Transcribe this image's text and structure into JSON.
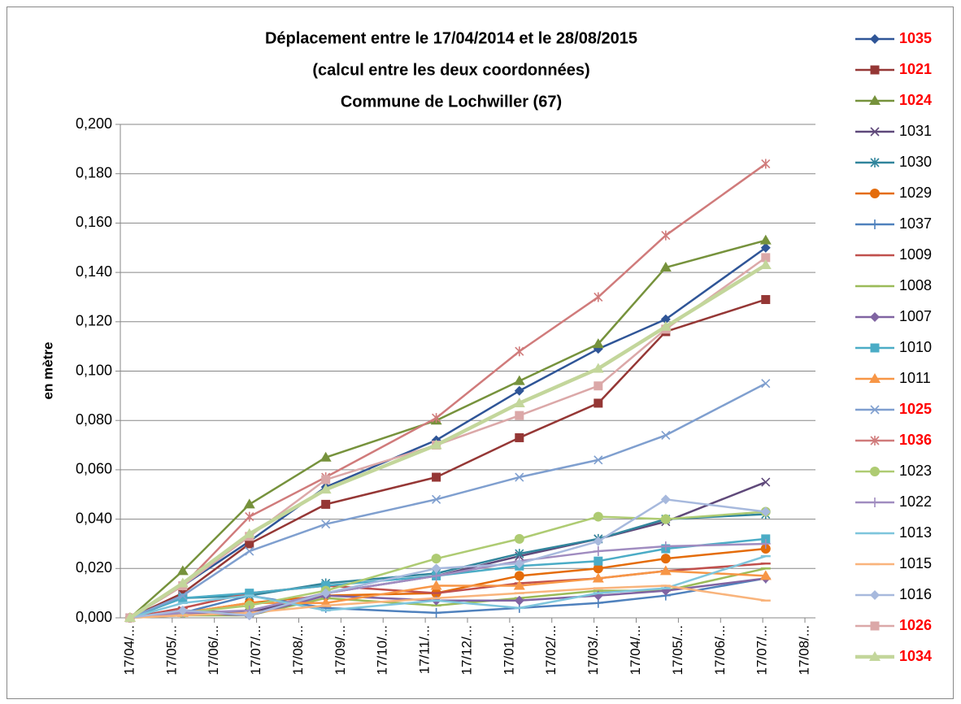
{
  "chart_data": {
    "type": "line",
    "title_lines": [
      "Déplacement entre le 17/04/2014 et le 28/08/2015",
      "(calcul entre les deux coordonnées)",
      "Commune de Lochwiller (67)"
    ],
    "y_label": "en mètre",
    "x": [
      0,
      1.25,
      2.83,
      4.64,
      7.26,
      9.23,
      11.1,
      12.7,
      15.07
    ],
    "xlim": [
      -0.23,
      16.25
    ],
    "xticks": [
      {
        "value": 0,
        "label": "17/04/..."
      },
      {
        "value": 1,
        "label": "17/05/..."
      },
      {
        "value": 2,
        "label": "17/06/..."
      },
      {
        "value": 3,
        "label": "17/07/..."
      },
      {
        "value": 4,
        "label": "17/08/..."
      },
      {
        "value": 5,
        "label": "17/09/..."
      },
      {
        "value": 6,
        "label": "17/10/..."
      },
      {
        "value": 7,
        "label": "17/11/..."
      },
      {
        "value": 8,
        "label": "17/12/..."
      },
      {
        "value": 9,
        "label": "17/01/..."
      },
      {
        "value": 10,
        "label": "17/02/..."
      },
      {
        "value": 11,
        "label": "17/03/..."
      },
      {
        "value": 12,
        "label": "17/04/..."
      },
      {
        "value": 13,
        "label": "17/05/..."
      },
      {
        "value": 14,
        "label": "17/06/..."
      },
      {
        "value": 15,
        "label": "17/07/..."
      },
      {
        "value": 16,
        "label": "17/08/..."
      }
    ],
    "ylim": [
      0,
      0.2
    ],
    "yticks": [
      {
        "value": 0,
        "label": "0,000"
      },
      {
        "value": 0.02,
        "label": "0,020"
      },
      {
        "value": 0.04,
        "label": "0,040"
      },
      {
        "value": 0.06,
        "label": "0,060"
      },
      {
        "value": 0.08,
        "label": "0,080"
      },
      {
        "value": 0.1,
        "label": "0,100"
      },
      {
        "value": 0.12,
        "label": "0,120"
      },
      {
        "value": 0.14,
        "label": "0,140"
      },
      {
        "value": 0.16,
        "label": "0,160"
      },
      {
        "value": 0.18,
        "label": "0,180"
      },
      {
        "value": 0.2,
        "label": "0,200"
      }
    ],
    "grid": true,
    "legend": "right",
    "series": [
      {
        "name": "1035",
        "color": "#2f5597",
        "marker": "diamond",
        "label_color": "#ff0000",
        "values": [
          0,
          0.013,
          0.031,
          0.053,
          0.072,
          0.092,
          0.109,
          0.121,
          0.15
        ]
      },
      {
        "name": "1021",
        "color": "#953735",
        "marker": "square",
        "label_color": "#ff0000",
        "values": [
          0,
          0.01,
          0.03,
          0.046,
          0.057,
          0.073,
          0.087,
          0.116,
          0.129
        ]
      },
      {
        "name": "1024",
        "color": "#76923c",
        "marker": "triangle",
        "label_color": "#ff0000",
        "values": [
          0,
          0.019,
          0.046,
          0.065,
          0.08,
          0.096,
          0.111,
          0.142,
          0.153
        ]
      },
      {
        "name": "1031",
        "color": "#5f497a",
        "marker": "x",
        "values": [
          0,
          0.003,
          0.002,
          0.01,
          0.017,
          0.025,
          0.032,
          0.039,
          0.055
        ]
      },
      {
        "name": "1030",
        "color": "#31859c",
        "marker": "star",
        "values": [
          0,
          0.008,
          0.009,
          0.014,
          0.018,
          0.026,
          0.032,
          0.04,
          0.042
        ]
      },
      {
        "name": "1029",
        "color": "#e46c0a",
        "marker": "circle",
        "values": [
          0,
          0.002,
          0.006,
          0.009,
          0.01,
          0.017,
          0.02,
          0.024,
          0.028
        ]
      },
      {
        "name": "1037",
        "color": "#4f81bd",
        "marker": "plus",
        "values": [
          0,
          0.002,
          0.009,
          0.004,
          0.002,
          0.004,
          0.006,
          0.009,
          0.016
        ]
      },
      {
        "name": "1009",
        "color": "#c0504d",
        "marker": "dash",
        "values": [
          0,
          0.004,
          0.01,
          0.013,
          0.01,
          0.014,
          0.016,
          0.019,
          0.022
        ]
      },
      {
        "name": "1008",
        "color": "#9bbb59",
        "marker": "dash",
        "values": [
          0,
          0.001,
          0.001,
          0.008,
          0.005,
          0.008,
          0.011,
          0.011,
          0.02
        ]
      },
      {
        "name": "1007",
        "color": "#8064a2",
        "marker": "diamond",
        "values": [
          0,
          0.002,
          0.001,
          0.009,
          0.007,
          0.007,
          0.009,
          0.011,
          0.016
        ]
      },
      {
        "name": "1010",
        "color": "#4bacc6",
        "marker": "square",
        "values": [
          0,
          0.008,
          0.01,
          0.013,
          0.017,
          0.021,
          0.023,
          0.028,
          0.032
        ]
      },
      {
        "name": "1011",
        "color": "#f79646",
        "marker": "triangle",
        "values": [
          0,
          0.002,
          0.006,
          0.006,
          0.013,
          0.013,
          0.016,
          0.019,
          0.017
        ]
      },
      {
        "name": "1025",
        "color": "#7f9fcf",
        "marker": "x",
        "label_color": "#ff0000",
        "values": [
          0,
          0.009,
          0.027,
          0.038,
          0.048,
          0.057,
          0.064,
          0.074,
          0.095
        ]
      },
      {
        "name": "1036",
        "color": "#d07b7b",
        "marker": "star",
        "label_color": "#ff0000",
        "values": [
          0,
          0.013,
          0.041,
          0.057,
          0.081,
          0.108,
          0.13,
          0.155,
          0.184
        ]
      },
      {
        "name": "1023",
        "color": "#aecb72",
        "marker": "circle",
        "values": [
          0,
          0.002,
          0.005,
          0.011,
          0.024,
          0.032,
          0.041,
          0.04,
          0.043
        ]
      },
      {
        "name": "1022",
        "color": "#a08cc0",
        "marker": "plus",
        "values": [
          0,
          0.002,
          0.003,
          0.01,
          0.017,
          0.023,
          0.027,
          0.029,
          0.03
        ]
      },
      {
        "name": "1013",
        "color": "#7ec5dc",
        "marker": "dash",
        "values": [
          0,
          0.006,
          0.009,
          0.003,
          0.007,
          0.004,
          0.01,
          0.012,
          0.025
        ]
      },
      {
        "name": "1015",
        "color": "#f9b47c",
        "marker": "dash",
        "values": [
          0,
          0.001,
          0.002,
          0.005,
          0.008,
          0.01,
          0.012,
          0.013,
          0.007
        ]
      },
      {
        "name": "1016",
        "color": "#a7b9dd",
        "marker": "diamond",
        "values": [
          0,
          0.003,
          0.001,
          0.01,
          0.02,
          0.022,
          0.031,
          0.048,
          0.043
        ]
      },
      {
        "name": "1026",
        "color": "#dba8a8",
        "marker": "square",
        "label_color": "#ff0000",
        "values": [
          0,
          0.013,
          0.033,
          0.056,
          0.07,
          0.082,
          0.094,
          0.117,
          0.146
        ]
      },
      {
        "name": "1034",
        "color": "#c3d69b",
        "marker": "triangle",
        "label_color": "#ff0000",
        "line_width": 4.5,
        "values": [
          0,
          0.014,
          0.034,
          0.052,
          0.07,
          0.087,
          0.101,
          0.118,
          0.143
        ]
      }
    ]
  }
}
